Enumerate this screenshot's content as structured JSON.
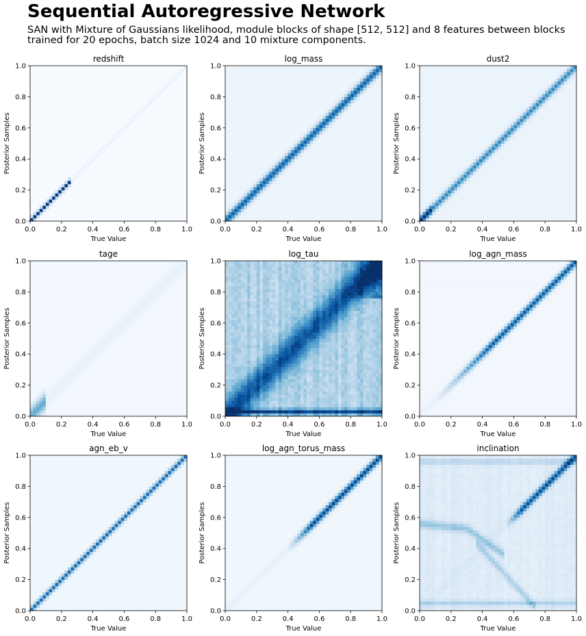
{
  "figure": {
    "title": "Sequential Autoregressive Network",
    "subtitle": "SAN with Mixture of Gaussians likelihood, module blocks of shape [512, 512] and 8 features between blocks trained for 20 epochs, batch size 1024 and 10 mixture components."
  },
  "colormap": {
    "name": "Blues",
    "low": "#f7fbff",
    "high": "#08306b"
  },
  "chart_data": [
    {
      "type": "heatmap",
      "title": "redshift",
      "xlabel": "True Value",
      "ylabel": "Posterior Samples",
      "xlim": [
        0,
        1
      ],
      "ylim": [
        0,
        1
      ],
      "xticks": [
        "0.0",
        "0.2",
        "0.4",
        "0.6",
        "0.8",
        "1.0"
      ],
      "yticks": [
        "0.0",
        "0.2",
        "0.4",
        "0.6",
        "0.8",
        "1.0"
      ],
      "pattern": {
        "diagonal_peak": 0.08,
        "diagonal_width": 0.012,
        "background": 0.0,
        "diagonal_boost": [
          {
            "x": [
              0.0,
              0.25
            ],
            "peak": 0.95
          }
        ]
      }
    },
    {
      "type": "heatmap",
      "title": "log_mass",
      "xlabel": "True Value",
      "ylabel": "Posterior Samples",
      "xlim": [
        0,
        1
      ],
      "ylim": [
        0,
        1
      ],
      "xticks": [
        "0.0",
        "0.2",
        "0.4",
        "0.6",
        "0.8",
        "1.0"
      ],
      "yticks": [
        "0.0",
        "0.2",
        "0.4",
        "0.6",
        "0.8",
        "1.0"
      ],
      "pattern": {
        "diagonal_peak": 0.75,
        "diagonal_width": 0.025,
        "background": 0.05
      }
    },
    {
      "type": "heatmap",
      "title": "dust2",
      "xlabel": "True Value",
      "ylabel": "Posterior Samples",
      "xlim": [
        0,
        1
      ],
      "ylim": [
        0,
        1
      ],
      "xticks": [
        "0.0",
        "0.2",
        "0.4",
        "0.6",
        "0.8",
        "1.0"
      ],
      "yticks": [
        "0.0",
        "0.2",
        "0.4",
        "0.6",
        "0.8",
        "1.0"
      ],
      "pattern": {
        "diagonal_peak": 0.6,
        "diagonal_width": 0.02,
        "background": 0.06,
        "diagonal_boost": [
          {
            "x": [
              0.0,
              0.08
            ],
            "peak": 0.95
          }
        ]
      }
    },
    {
      "type": "heatmap",
      "title": "tage",
      "xlabel": "True Value",
      "ylabel": "Posterior Samples",
      "xlim": [
        0,
        1
      ],
      "ylim": [
        0,
        1
      ],
      "xticks": [
        "0.0",
        "0.2",
        "0.4",
        "0.6",
        "0.8",
        "1.0"
      ],
      "yticks": [
        "0.0",
        "0.2",
        "0.4",
        "0.6",
        "0.8",
        "1.0"
      ],
      "pattern": {
        "diagonal_peak": 0.06,
        "diagonal_width": 0.04,
        "background": 0.02,
        "diagonal_boost": [
          {
            "x": [
              0.0,
              0.1
            ],
            "peak": 0.5
          }
        ]
      }
    },
    {
      "type": "heatmap",
      "title": "log_tau",
      "xlabel": "True Value",
      "ylabel": "Posterior Samples",
      "xlim": [
        0,
        1
      ],
      "ylim": [
        0,
        1
      ],
      "xticks": [
        "0.0",
        "0.2",
        "0.4",
        "0.6",
        "0.8",
        "1.0"
      ],
      "yticks": [
        "0.0",
        "0.2",
        "0.4",
        "0.6",
        "0.8",
        "1.0"
      ],
      "pattern": {
        "diagonal_peak": 0.55,
        "diagonal_width": 0.08,
        "background": 0.25,
        "noise": 0.18,
        "bottom_band": {
          "y": 0.03,
          "strength": 0.6
        },
        "top_right": 0.45
      }
    },
    {
      "type": "heatmap",
      "title": "log_agn_mass",
      "xlabel": "True Value",
      "ylabel": "Posterior Samples",
      "xlim": [
        0,
        1
      ],
      "ylim": [
        0,
        1
      ],
      "xticks": [
        "0.0",
        "0.2",
        "0.4",
        "0.6",
        "0.8",
        "1.0"
      ],
      "yticks": [
        "0.0",
        "0.2",
        "0.4",
        "0.6",
        "0.8",
        "1.0"
      ],
      "pattern": {
        "diagonal_peak": 0.8,
        "diagonal_width": 0.02,
        "background": 0.03,
        "diagonal_fade": {
          "start": 0.1,
          "full": 0.45
        }
      }
    },
    {
      "type": "heatmap",
      "title": "agn_eb_v",
      "xlabel": "True Value",
      "ylabel": "Posterior Samples",
      "xlim": [
        0,
        1
      ],
      "ylim": [
        0,
        1
      ],
      "xticks": [
        "0.0",
        "0.2",
        "0.4",
        "0.6",
        "0.8",
        "1.0"
      ],
      "yticks": [
        "0.0",
        "0.2",
        "0.4",
        "0.6",
        "0.8",
        "1.0"
      ],
      "pattern": {
        "diagonal_peak": 0.72,
        "diagonal_width": 0.015,
        "background": 0.04
      }
    },
    {
      "type": "heatmap",
      "title": "log_agn_torus_mass",
      "xlabel": "True Value",
      "ylabel": "Posterior Samples",
      "xlim": [
        0,
        1
      ],
      "ylim": [
        0,
        1
      ],
      "xticks": [
        "0.0",
        "0.2",
        "0.4",
        "0.6",
        "0.8",
        "1.0"
      ],
      "yticks": [
        "0.0",
        "0.2",
        "0.4",
        "0.6",
        "0.8",
        "1.0"
      ],
      "pattern": {
        "diagonal_peak": 0.85,
        "diagonal_width": 0.02,
        "background": 0.04,
        "diagonal_fade": {
          "start": 0.4,
          "full": 0.55
        }
      }
    },
    {
      "type": "heatmap",
      "title": "inclination",
      "xlabel": "True Value",
      "ylabel": "Posterior Samples",
      "xlim": [
        0,
        1
      ],
      "ylim": [
        0,
        1
      ],
      "xticks": [
        "0.0",
        "0.2",
        "0.4",
        "0.6",
        "0.8",
        "1.0"
      ],
      "yticks": [
        "0.0",
        "0.2",
        "0.4",
        "0.6",
        "0.8",
        "1.0"
      ],
      "pattern": {
        "diagonal_peak": 0.75,
        "diagonal_width": 0.02,
        "background": 0.1,
        "noise": 0.06,
        "diagonal_fade": {
          "start": 0.55,
          "full": 0.65
        },
        "top_band": {
          "y": 0.96,
          "strength": 0.2
        },
        "bottom_band": {
          "y": 0.05,
          "strength": 0.2
        },
        "mirror_curve": 0.28
      }
    }
  ]
}
